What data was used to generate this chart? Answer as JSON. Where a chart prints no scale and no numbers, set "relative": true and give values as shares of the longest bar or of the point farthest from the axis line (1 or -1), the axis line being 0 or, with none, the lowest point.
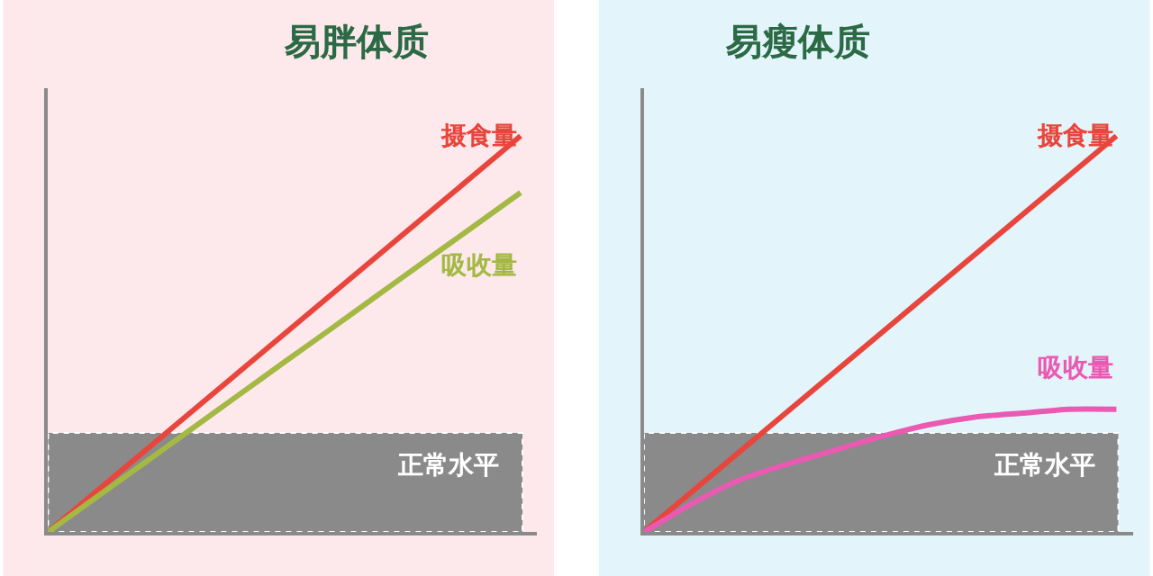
{
  "chart_data": [
    {
      "type": "line",
      "title": "易胖体质",
      "relative": true,
      "legend": false,
      "grid": false,
      "marker": "none",
      "line_style": "solid",
      "categories": [
        null,
        null,
        null,
        null,
        null,
        null,
        null,
        null,
        null,
        null,
        null
      ],
      "series": [
        {
          "name": "摄食量",
          "color": "#e8453c",
          "values": [
            0,
            0.1,
            0.2,
            0.3,
            0.4,
            0.5,
            0.6,
            0.7,
            0.8,
            0.9,
            1
          ]
        },
        {
          "name": "吸收量",
          "color": "#a4b844",
          "values": [
            0,
            0.086,
            0.171,
            0.257,
            0.343,
            0.429,
            0.514,
            0.6,
            0.686,
            0.771,
            0.857
          ]
        }
      ],
      "bands": [
        {
          "axis": "y",
          "from": 0,
          "to": 0.25,
          "label": "正常水平",
          "color": "#8a8a8a"
        }
      ]
    },
    {
      "type": "line",
      "title": "易瘦体质",
      "relative": true,
      "legend": false,
      "grid": false,
      "marker": "none",
      "line_style": "solid",
      "categories": [
        null,
        null,
        null,
        null,
        null,
        null,
        null,
        null,
        null,
        null,
        null
      ],
      "series": [
        {
          "name": "摄食量",
          "color": "#e8453c",
          "values": [
            0,
            0.1,
            0.2,
            0.3,
            0.4,
            0.5,
            0.6,
            0.7,
            0.8,
            0.9,
            1
          ]
        },
        {
          "name": "吸收量",
          "color": "#ea5ab2",
          "values": [
            0,
            0.07,
            0.13,
            0.17,
            0.205,
            0.24,
            0.27,
            0.29,
            0.3,
            0.31,
            0.31
          ]
        }
      ],
      "bands": [
        {
          "axis": "y",
          "from": 0,
          "to": 0.25,
          "label": "正常水平",
          "color": "#8a8a8a"
        }
      ]
    }
  ]
}
